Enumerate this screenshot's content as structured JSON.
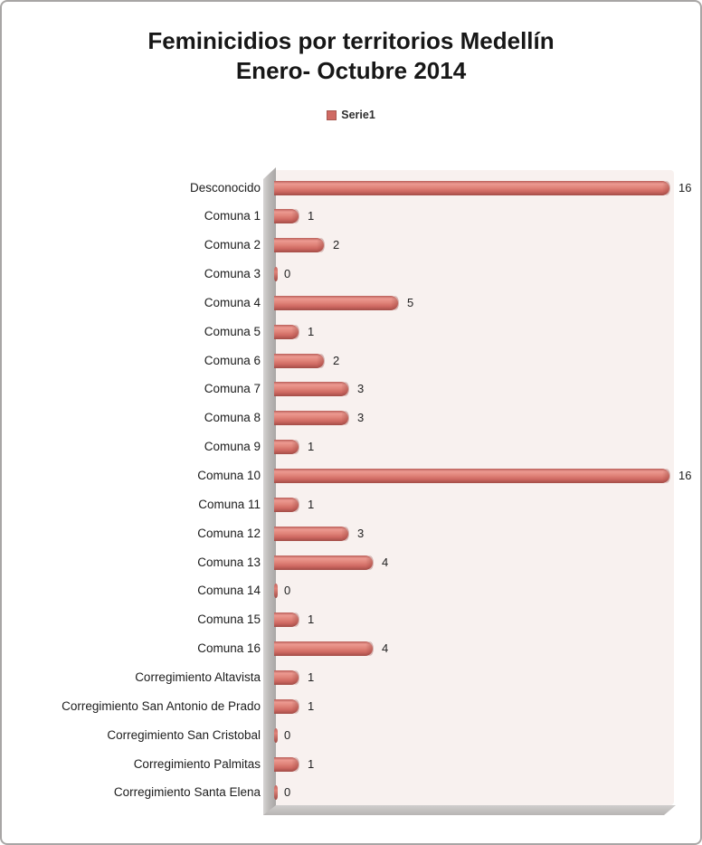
{
  "title_line1": "Feminicidios por territorios Medellín",
  "title_line2": "Enero- Octubre 2014",
  "legend": {
    "label": "Serie1",
    "swatch_color": "#cf6a63"
  },
  "colors": {
    "bar": "#d9736c",
    "bar_highlight": "#ec9a91",
    "bar_shadow": "#a24c47",
    "plot_background": "#f8f1ef",
    "wall": "#b5b2b1",
    "page_border": "#a8a6a5"
  },
  "chart_data": {
    "type": "bar",
    "orientation": "horizontal",
    "title": "Feminicidios por territorios Medellín Enero- Octubre 2014",
    "legend_entries": [
      "Serie1"
    ],
    "legend_position": "top-center",
    "grid": false,
    "xlim": [
      0,
      16
    ],
    "xlabel": "",
    "ylabel": "",
    "data_labels_shown": true,
    "categories": [
      "Desconocido",
      "Comuna 1",
      "Comuna 2",
      "Comuna 3",
      "Comuna 4",
      "Comuna 5",
      "Comuna 6",
      "Comuna 7",
      "Comuna 8",
      "Comuna 9",
      "Comuna 10",
      "Comuna 11",
      "Comuna 12",
      "Comuna 13",
      "Comuna 14",
      "Comuna 15",
      "Comuna 16",
      "Corregimiento Altavista",
      "Corregimiento San Antonio de Prado",
      "Corregimiento  San Cristobal",
      "Corregimiento Palmitas",
      "Corregimiento Santa Elena"
    ],
    "values": [
      16,
      1,
      2,
      0,
      5,
      1,
      2,
      3,
      3,
      1,
      16,
      1,
      3,
      4,
      0,
      1,
      4,
      1,
      1,
      0,
      1,
      0
    ]
  }
}
